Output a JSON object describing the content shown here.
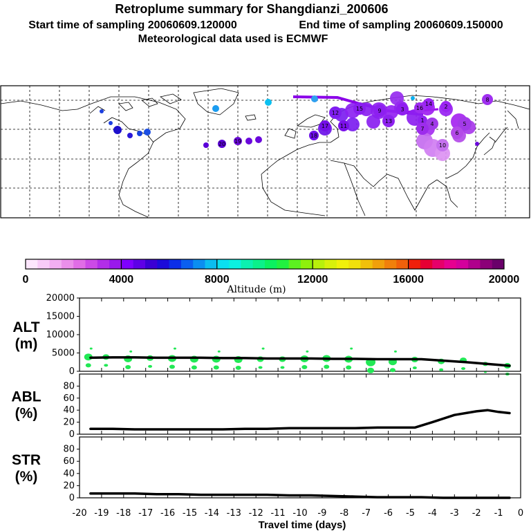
{
  "header": {
    "title": "Retroplume summary for Shangdianzi_200606",
    "start_label": "Start time of sampling 20060609.120000",
    "end_label": "End time of sampling 20060609.150000",
    "met_label": "Meteorological data used is ECMWF"
  },
  "colors": {
    "line": "#000000",
    "cluster_green": "#22e855",
    "map_line": "#000000",
    "grid": "#000000"
  },
  "colorbar": {
    "label": "Altitude (m)",
    "tick_labels": [
      "0",
      "4000",
      "8000",
      "12000",
      "16000",
      "20000"
    ],
    "colors": [
      "#fde6fd",
      "#f8cbf8",
      "#f2aef2",
      "#ea8fea",
      "#e06de6",
      "#cc4ae6",
      "#b22ee8",
      "#9a19ec",
      "#7f00ff",
      "#5e00e6",
      "#3a00d4",
      "#1b0bd9",
      "#0b2ee8",
      "#0b5ff0",
      "#0b8ef0",
      "#0bbdf0",
      "#0be0f0",
      "#0bf0e0",
      "#0bf0b0",
      "#0bf08a",
      "#0bf060",
      "#22f040",
      "#5cf020",
      "#8ef00b",
      "#b8f00b",
      "#d8f00b",
      "#f0f00b",
      "#f0e00b",
      "#f0c00b",
      "#f0a00b",
      "#f0800b",
      "#f0600b",
      "#f0200b",
      "#e60033",
      "#e6006a",
      "#e60090",
      "#d4009c",
      "#b0008c",
      "#8c0078",
      "#6a006a"
    ]
  },
  "map": {
    "cluster_labels": [
      "1",
      "2",
      "3",
      "4",
      "5",
      "6",
      "7",
      "8",
      "9",
      "10",
      "11",
      "12",
      "13",
      "14",
      "15",
      "16",
      "17",
      "18",
      "19",
      "20"
    ]
  },
  "chart_data": [
    {
      "type": "line",
      "name": "ALT",
      "ylabel": "ALT\n(m)",
      "ylabel_lines": [
        "ALT",
        "(m)"
      ],
      "xlabel": "Travel time (days)",
      "xlim": [
        -20,
        0
      ],
      "ylim": [
        0,
        20000
      ],
      "yticks": [
        "20000",
        "15000",
        "10000",
        "5000",
        "0"
      ],
      "xticks": [
        "-20",
        "-19",
        "-18",
        "-17",
        "-16",
        "-15",
        "-14",
        "-13",
        "-12",
        "-11",
        "-10",
        "-9",
        "-8",
        "-7",
        "-6",
        "-5",
        "-4",
        "-3",
        "-2",
        "-1",
        "0"
      ],
      "series": [
        {
          "name": "mean altitude",
          "x": [
            -19.5,
            -18.5,
            -17.5,
            -16.5,
            -15.5,
            -14.5,
            -13.5,
            -12.5,
            -11.5,
            -10.5,
            -9.5,
            -8.5,
            -7.5,
            -6.5,
            -5.5,
            -4.5,
            -3.5,
            -2.5,
            -1.5,
            -0.5
          ],
          "values": [
            3700,
            3800,
            3800,
            3700,
            3700,
            3700,
            3600,
            3600,
            3500,
            3500,
            3500,
            3400,
            3400,
            3300,
            3300,
            3300,
            2900,
            2500,
            2000,
            1500
          ]
        }
      ],
      "clusters": {
        "x": [
          -19.6,
          -18.8,
          -17.8,
          -16.8,
          -15.8,
          -14.8,
          -13.8,
          -12.8,
          -11.8,
          -10.8,
          -9.8,
          -8.8,
          -7.8,
          -6.8,
          -5.8,
          -4.8,
          -3.6,
          -2.6,
          -1.6,
          -0.6
        ],
        "values": [
          3900,
          3900,
          3400,
          3600,
          3500,
          3300,
          3300,
          3200,
          3300,
          3300,
          3400,
          3500,
          3300,
          2500,
          2600,
          3200,
          2700,
          3000,
          2000,
          1500
        ],
        "weights": [
          4,
          3,
          4,
          3,
          4,
          4,
          4,
          4,
          3,
          3,
          4,
          4,
          4,
          5,
          4,
          3,
          3,
          3,
          2,
          3
        ]
      }
    },
    {
      "type": "line",
      "name": "ABL",
      "ylabel": "ABL\n(%)",
      "ylabel_lines": [
        "ABL",
        "(%)"
      ],
      "xlim": [
        -20,
        0
      ],
      "ylim": [
        0,
        100
      ],
      "yticks": [
        "80",
        "60",
        "40",
        "20",
        "0"
      ],
      "series": [
        {
          "name": "fraction in ABL",
          "x": [
            -19.5,
            -18.5,
            -17.5,
            -16.5,
            -15.5,
            -14.5,
            -13.5,
            -12.5,
            -11.5,
            -10.5,
            -9.5,
            -8.5,
            -7.5,
            -6.5,
            -5.5,
            -4.8,
            -4,
            -3,
            -2,
            -1.5,
            -1,
            -0.5
          ],
          "values": [
            9,
            9,
            8,
            8,
            8,
            8,
            8,
            9,
            9,
            10,
            10,
            10,
            10,
            11,
            11,
            11,
            20,
            32,
            38,
            40,
            37,
            35
          ]
        }
      ]
    },
    {
      "type": "line",
      "name": "STR",
      "ylabel": "STR\n(%)",
      "ylabel_lines": [
        "STR",
        "(%)"
      ],
      "xlim": [
        -20,
        0
      ],
      "ylim": [
        0,
        100
      ],
      "yticks": [
        "80",
        "60",
        "40",
        "20",
        "0"
      ],
      "series": [
        {
          "name": "fraction in stratosphere",
          "x": [
            -19.5,
            -18.5,
            -17.5,
            -16.5,
            -15.5,
            -14.5,
            -13.5,
            -12.5,
            -11.5,
            -10.5,
            -9.5,
            -8.5,
            -7.5,
            -6.5,
            -5.5,
            -4.5,
            -3.5,
            -2.5,
            -1.5,
            -0.5
          ],
          "values": [
            7,
            7,
            7,
            6,
            6,
            5,
            5,
            5,
            5,
            4,
            4,
            3,
            2,
            1,
            1,
            1,
            0,
            0,
            0,
            0
          ]
        }
      ]
    }
  ]
}
